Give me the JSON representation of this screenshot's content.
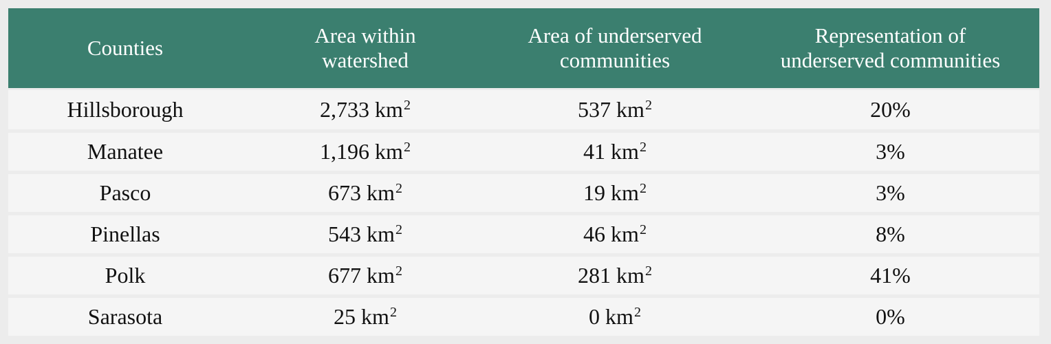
{
  "table": {
    "headers": [
      [
        "Counties"
      ],
      [
        "Area within",
        "watershed"
      ],
      [
        "Area of underserved",
        "communities"
      ],
      [
        "Representation of",
        "underserved communities"
      ]
    ],
    "unit": "km",
    "unit_exponent": "2",
    "rows": [
      {
        "county": "Hillsborough",
        "area": "2,733",
        "underserved": "537",
        "representation": "20%"
      },
      {
        "county": "Manatee",
        "area": "1,196",
        "underserved": "41",
        "representation": "3%"
      },
      {
        "county": "Pasco",
        "area": "673",
        "underserved": "19",
        "representation": "3%"
      },
      {
        "county": "Pinellas",
        "area": "543",
        "underserved": "46",
        "representation": "8%"
      },
      {
        "county": "Polk",
        "area": "677",
        "underserved": "281",
        "representation": "41%"
      },
      {
        "county": "Sarasota",
        "area": "25",
        "underserved": "0",
        "representation": "0%"
      }
    ]
  },
  "colors": {
    "header_background": "#3b7f6f",
    "header_text": "#ffffff",
    "row_background": "#f5f5f5",
    "page_background": "#ececec"
  }
}
